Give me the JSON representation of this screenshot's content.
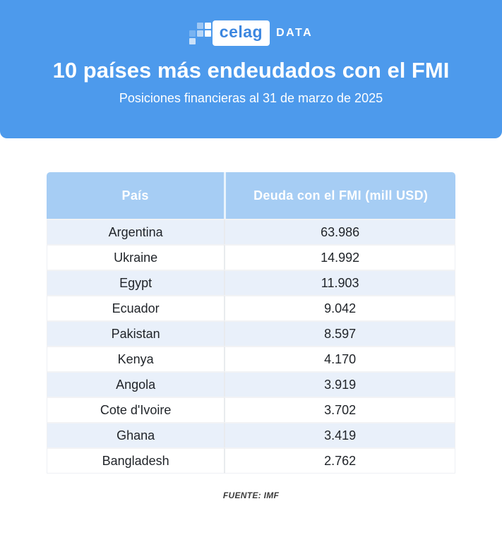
{
  "brand": {
    "logo_text": "celag",
    "logo_suffix": "DATA"
  },
  "header": {
    "title": "10 países más endeudados con el FMI",
    "subtitle": "Posiciones financieras al 31 de marzo de 2025"
  },
  "footer": {
    "source": "FUENTE: IMF"
  },
  "colors": {
    "banner_blue": "#4D9AEC",
    "table_header_bg": "#A6CDF4",
    "row_alt_bg": "#E9F0FA",
    "logo_text_blue": "#3C87E0",
    "cell_text": "#1F2328"
  },
  "chart_data": {
    "type": "table",
    "title": "10 países más endeudados con el FMI",
    "subtitle": "Posiciones financieras al 31 de marzo de 2025",
    "columns": [
      "País",
      "Deuda con el FMI (mill USD)"
    ],
    "rows": [
      [
        "Argentina",
        "63.986"
      ],
      [
        "Ukraine",
        "14.992"
      ],
      [
        "Egypt",
        "11.903"
      ],
      [
        "Ecuador",
        "9.042"
      ],
      [
        "Pakistan",
        "8.597"
      ],
      [
        "Kenya",
        "4.170"
      ],
      [
        "Angola",
        "3.919"
      ],
      [
        "Cote d'Ivoire",
        "3.702"
      ],
      [
        "Ghana",
        "3.419"
      ],
      [
        "Bangladesh",
        "2.762"
      ]
    ],
    "values_numeric_mill_usd": [
      63986,
      14992,
      11903,
      9042,
      8597,
      4170,
      3919,
      3702,
      3419,
      2762
    ],
    "source": "FUENTE: IMF"
  }
}
